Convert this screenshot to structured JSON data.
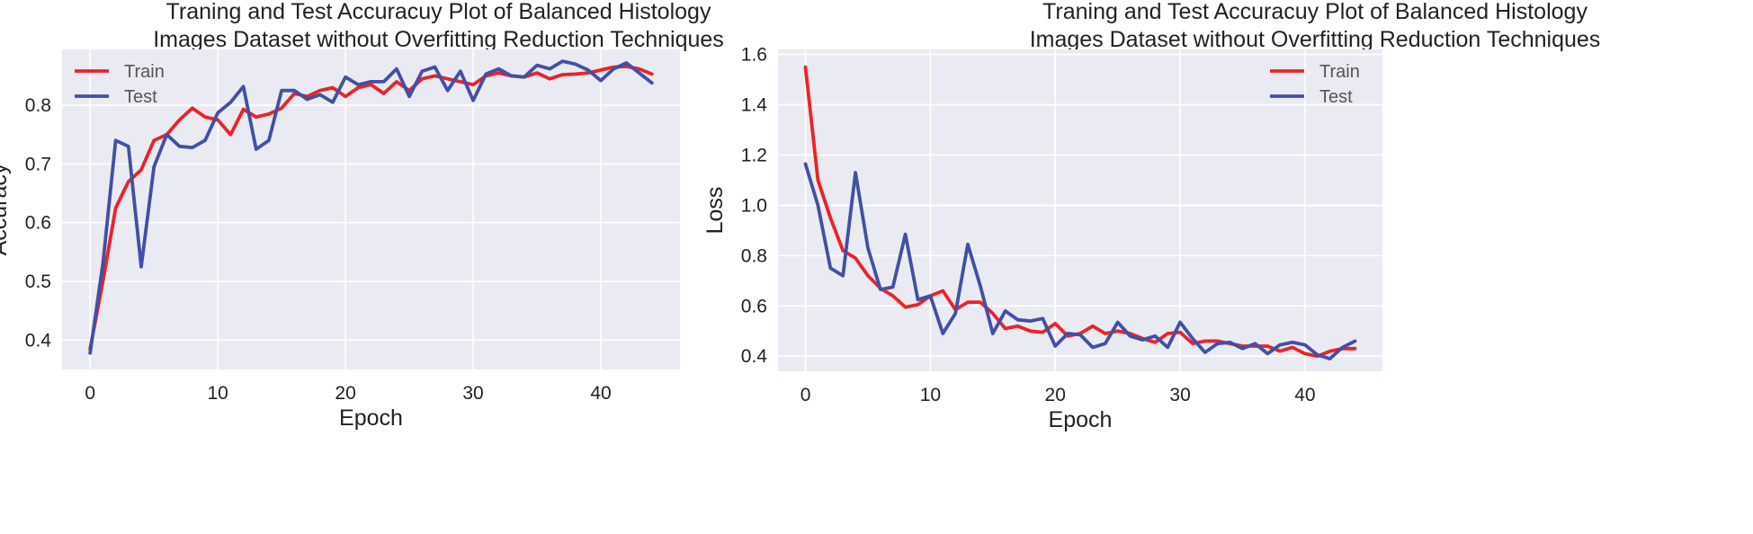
{
  "colors": {
    "train": "#ec2229",
    "test": "#4150a6",
    "plot_bg": "#eaeaf2",
    "grid": "#ffffff"
  },
  "chart_data": [
    {
      "type": "line",
      "title": "Traning and Test Accuracuy Plot of Balanced Histology\nImages Dataset without Overfitting Reduction Techniques",
      "xlabel": "Epoch",
      "ylabel": "Accuracy",
      "xlim": [
        -2.2,
        46.2
      ],
      "ylim": [
        0.35,
        0.895
      ],
      "xticks": [
        0,
        10,
        20,
        30,
        40
      ],
      "yticks": [
        0.4,
        0.5,
        0.6,
        0.7,
        0.8
      ],
      "ytick_labels": [
        "0.4",
        "0.5",
        "0.6",
        "0.7",
        "0.8"
      ],
      "grid": true,
      "legend_position": "top-left",
      "x": [
        0,
        1,
        2,
        3,
        4,
        5,
        6,
        7,
        8,
        9,
        10,
        11,
        12,
        13,
        14,
        15,
        16,
        17,
        18,
        19,
        20,
        21,
        22,
        23,
        24,
        25,
        26,
        27,
        28,
        29,
        30,
        31,
        32,
        33,
        34,
        35,
        36,
        37,
        38,
        39,
        40,
        41,
        42,
        43,
        44
      ],
      "series": [
        {
          "name": "Train",
          "color_key": "train",
          "values": [
            0.385,
            0.5,
            0.625,
            0.67,
            0.69,
            0.74,
            0.75,
            0.775,
            0.795,
            0.78,
            0.775,
            0.75,
            0.793,
            0.78,
            0.785,
            0.795,
            0.82,
            0.815,
            0.825,
            0.83,
            0.815,
            0.83,
            0.835,
            0.82,
            0.84,
            0.825,
            0.845,
            0.85,
            0.845,
            0.84,
            0.835,
            0.85,
            0.855,
            0.85,
            0.848,
            0.855,
            0.845,
            0.852,
            0.853,
            0.855,
            0.86,
            0.865,
            0.866,
            0.862,
            0.853
          ]
        },
        {
          "name": "Test",
          "color_key": "test",
          "values": [
            0.378,
            0.53,
            0.74,
            0.73,
            0.525,
            0.695,
            0.75,
            0.73,
            0.728,
            0.74,
            0.787,
            0.805,
            0.832,
            0.725,
            0.74,
            0.825,
            0.825,
            0.81,
            0.818,
            0.805,
            0.848,
            0.835,
            0.84,
            0.84,
            0.862,
            0.815,
            0.858,
            0.865,
            0.825,
            0.858,
            0.808,
            0.853,
            0.862,
            0.85,
            0.848,
            0.868,
            0.862,
            0.875,
            0.87,
            0.86,
            0.842,
            0.862,
            0.872,
            0.855,
            0.838
          ]
        }
      ]
    },
    {
      "type": "line",
      "title": "Traning and Test Accuracuy Plot of Balanced Histology\nImages Dataset without Overfitting Reduction Techniques",
      "xlabel": "Epoch",
      "ylabel": "Loss",
      "xlim": [
        -2.2,
        46.2
      ],
      "ylim": [
        0.34,
        1.62
      ],
      "xticks": [
        0,
        10,
        20,
        30,
        40
      ],
      "yticks": [
        0.4,
        0.6,
        0.8,
        1.0,
        1.2,
        1.4,
        1.6
      ],
      "ytick_labels": [
        "0.4",
        "0.6",
        "0.8",
        "1.0",
        "1.2",
        "1.4",
        "1.6"
      ],
      "grid": true,
      "legend_position": "top-right",
      "x": [
        0,
        1,
        2,
        3,
        4,
        5,
        6,
        7,
        8,
        9,
        10,
        11,
        12,
        13,
        14,
        15,
        16,
        17,
        18,
        19,
        20,
        21,
        22,
        23,
        24,
        25,
        26,
        27,
        28,
        29,
        30,
        31,
        32,
        33,
        34,
        35,
        36,
        37,
        38,
        39,
        40,
        41,
        42,
        43,
        44
      ],
      "series": [
        {
          "name": "Train",
          "color_key": "train",
          "values": [
            1.55,
            1.1,
            0.95,
            0.82,
            0.79,
            0.72,
            0.67,
            0.64,
            0.595,
            0.605,
            0.64,
            0.66,
            0.585,
            0.615,
            0.615,
            0.57,
            0.51,
            0.52,
            0.5,
            0.495,
            0.53,
            0.48,
            0.49,
            0.52,
            0.49,
            0.5,
            0.49,
            0.47,
            0.455,
            0.49,
            0.495,
            0.45,
            0.46,
            0.46,
            0.45,
            0.44,
            0.44,
            0.44,
            0.42,
            0.435,
            0.41,
            0.4,
            0.42,
            0.43,
            0.43
          ]
        },
        {
          "name": "Test",
          "color_key": "test",
          "values": [
            1.165,
            1.0,
            0.75,
            0.72,
            1.13,
            0.83,
            0.665,
            0.675,
            0.885,
            0.625,
            0.64,
            0.49,
            0.57,
            0.845,
            0.68,
            0.49,
            0.58,
            0.545,
            0.54,
            0.55,
            0.44,
            0.49,
            0.485,
            0.435,
            0.45,
            0.535,
            0.48,
            0.465,
            0.48,
            0.435,
            0.535,
            0.47,
            0.415,
            0.45,
            0.455,
            0.43,
            0.45,
            0.41,
            0.445,
            0.455,
            0.445,
            0.405,
            0.39,
            0.435,
            0.46
          ]
        }
      ]
    }
  ]
}
